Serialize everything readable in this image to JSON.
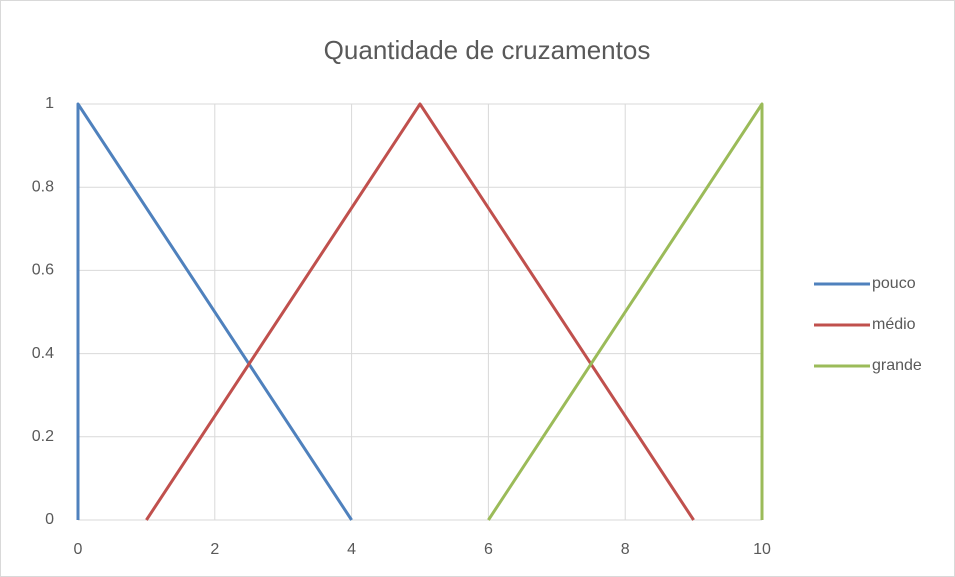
{
  "chart_data": {
    "type": "line",
    "title": "Quantidade de cruzamentos",
    "series": [
      {
        "name": "pouco",
        "color": "#4f81bd",
        "x": [
          0,
          0,
          4
        ],
        "values": [
          0,
          1,
          0
        ]
      },
      {
        "name": "médio",
        "color": "#c0504d",
        "x": [
          1,
          5,
          9
        ],
        "values": [
          0,
          1,
          0
        ]
      },
      {
        "name": "grande",
        "color": "#9bbb59",
        "x": [
          6,
          10,
          10
        ],
        "values": [
          0,
          1,
          0
        ]
      }
    ],
    "xlim": [
      0,
      10
    ],
    "xticks": [
      0,
      2,
      4,
      6,
      8,
      10
    ],
    "ylim": [
      0,
      1
    ],
    "yticks": [
      0,
      0.2,
      0.4,
      0.6,
      0.8,
      1
    ],
    "grid": true,
    "legend": "right"
  }
}
